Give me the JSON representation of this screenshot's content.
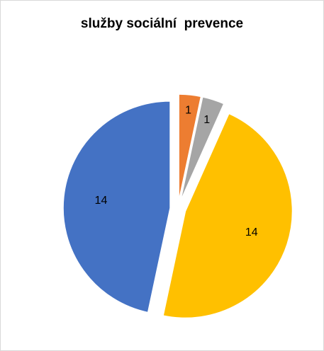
{
  "chart_data": {
    "type": "pie",
    "title": "služby sociální  prevence",
    "slices": [
      {
        "value": 1,
        "label": "1",
        "color": "#ED7D31"
      },
      {
        "value": 1,
        "label": "1",
        "color": "#A5A5A5"
      },
      {
        "value": 14,
        "label": "14",
        "color": "#FFC000"
      },
      {
        "value": 14,
        "label": "14",
        "color": "#4472C4"
      }
    ],
    "exploded": true,
    "legend": "none",
    "data_labels": "inside"
  }
}
